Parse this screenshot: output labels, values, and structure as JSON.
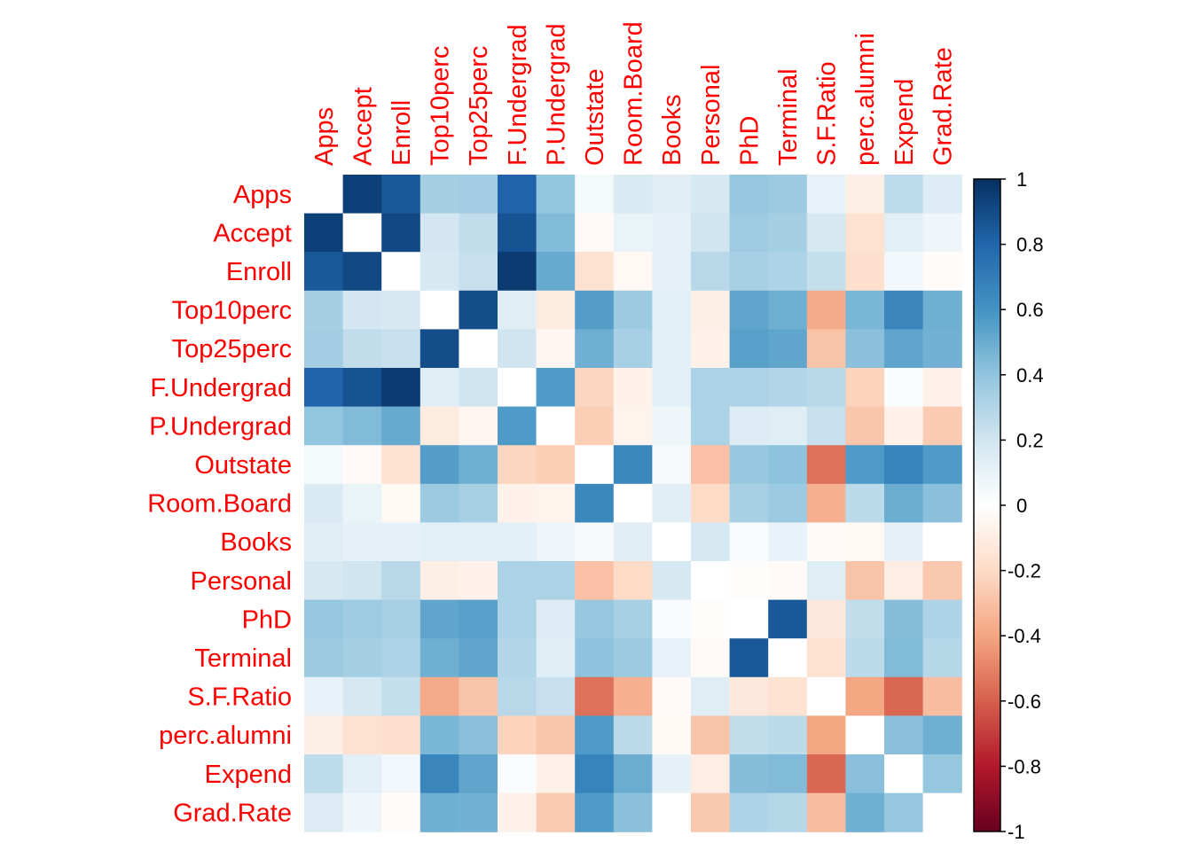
{
  "chart_data": {
    "type": "heatmap",
    "variables": [
      "Apps",
      "Accept",
      "Enroll",
      "Top10perc",
      "Top25perc",
      "F.Undergrad",
      "P.Undergrad",
      "Outstate",
      "Room.Board",
      "Books",
      "Personal",
      "PhD",
      "Terminal",
      "S.F.Ratio",
      "perc.alumni",
      "Expend",
      "Grad.Rate"
    ],
    "matrix": [
      [
        1.0,
        0.94,
        0.85,
        0.34,
        0.35,
        0.81,
        0.4,
        0.05,
        0.16,
        0.13,
        0.18,
        0.39,
        0.37,
        0.1,
        -0.09,
        0.26,
        0.15
      ],
      [
        0.94,
        1.0,
        0.91,
        0.19,
        0.25,
        0.87,
        0.44,
        -0.03,
        0.09,
        0.11,
        0.2,
        0.36,
        0.34,
        0.18,
        -0.16,
        0.12,
        0.07
      ],
      [
        0.85,
        0.91,
        1.0,
        0.18,
        0.23,
        0.96,
        0.51,
        -0.16,
        -0.04,
        0.11,
        0.28,
        0.33,
        0.31,
        0.24,
        -0.18,
        0.06,
        -0.02
      ],
      [
        0.34,
        0.19,
        0.18,
        1.0,
        0.89,
        0.14,
        -0.11,
        0.56,
        0.37,
        0.12,
        -0.09,
        0.53,
        0.49,
        -0.38,
        0.46,
        0.66,
        0.49
      ],
      [
        0.35,
        0.25,
        0.23,
        0.89,
        1.0,
        0.2,
        -0.05,
        0.49,
        0.33,
        0.12,
        -0.08,
        0.55,
        0.53,
        -0.29,
        0.42,
        0.53,
        0.48
      ],
      [
        0.81,
        0.87,
        0.96,
        0.14,
        0.2,
        1.0,
        0.57,
        -0.22,
        -0.07,
        0.12,
        0.32,
        0.32,
        0.3,
        0.28,
        -0.23,
        0.02,
        -0.08
      ],
      [
        0.4,
        0.44,
        0.51,
        -0.11,
        -0.05,
        0.57,
        1.0,
        -0.25,
        -0.06,
        0.08,
        0.32,
        0.15,
        0.14,
        0.23,
        -0.28,
        -0.08,
        -0.26
      ],
      [
        0.05,
        -0.03,
        -0.16,
        0.56,
        0.49,
        -0.22,
        -0.25,
        1.0,
        0.65,
        0.04,
        -0.3,
        0.38,
        0.41,
        -0.55,
        0.57,
        0.67,
        0.57
      ],
      [
        0.16,
        0.09,
        -0.04,
        0.37,
        0.33,
        -0.07,
        -0.06,
        0.65,
        1.0,
        0.13,
        -0.2,
        0.33,
        0.37,
        -0.36,
        0.27,
        0.5,
        0.42
      ],
      [
        0.13,
        0.11,
        0.11,
        0.12,
        0.12,
        0.12,
        0.08,
        0.04,
        0.13,
        1.0,
        0.18,
        0.03,
        0.1,
        -0.03,
        -0.04,
        0.11,
        0.0
      ],
      [
        0.18,
        0.2,
        0.28,
        -0.09,
        -0.08,
        0.32,
        0.32,
        -0.3,
        -0.2,
        0.18,
        1.0,
        -0.01,
        -0.03,
        0.14,
        -0.29,
        -0.1,
        -0.27
      ],
      [
        0.39,
        0.36,
        0.33,
        0.53,
        0.55,
        0.32,
        0.15,
        0.38,
        0.33,
        0.03,
        -0.01,
        1.0,
        0.85,
        -0.13,
        0.25,
        0.43,
        0.31
      ],
      [
        0.37,
        0.34,
        0.31,
        0.49,
        0.53,
        0.3,
        0.14,
        0.41,
        0.37,
        0.1,
        -0.03,
        0.85,
        1.0,
        -0.16,
        0.27,
        0.44,
        0.29
      ],
      [
        0.1,
        0.18,
        0.24,
        -0.38,
        -0.29,
        0.28,
        0.23,
        -0.55,
        -0.36,
        -0.03,
        0.14,
        -0.13,
        -0.16,
        1.0,
        -0.4,
        -0.58,
        -0.31
      ],
      [
        -0.09,
        -0.16,
        -0.18,
        0.46,
        0.42,
        -0.23,
        -0.28,
        0.57,
        0.27,
        -0.04,
        -0.29,
        0.25,
        0.27,
        -0.4,
        1.0,
        0.42,
        0.49
      ],
      [
        0.26,
        0.12,
        0.06,
        0.66,
        0.53,
        0.02,
        -0.08,
        0.67,
        0.5,
        0.11,
        -0.1,
        0.43,
        0.44,
        -0.58,
        0.42,
        1.0,
        0.39
      ],
      [
        0.15,
        0.07,
        -0.02,
        0.49,
        0.48,
        -0.08,
        -0.26,
        0.57,
        0.42,
        0.0,
        -0.27,
        0.31,
        0.29,
        -0.31,
        0.49,
        0.39,
        1.0
      ]
    ],
    "diagonal_shown_blank": true,
    "colorbar": {
      "range": [
        -1,
        1
      ],
      "ticks": [
        "1",
        "0.8",
        "0.6",
        "0.4",
        "0.2",
        "0",
        "-0.2",
        "-0.4",
        "-0.6",
        "-0.8",
        "-1"
      ],
      "colors": [
        "#67001F",
        "#B2182B",
        "#D6604D",
        "#F4A582",
        "#FDDBC7",
        "#FFFFFF",
        "#D1E5F0",
        "#92C5DE",
        "#4393C3",
        "#2166AC",
        "#053061"
      ]
    },
    "label_color": "#FF0000"
  }
}
